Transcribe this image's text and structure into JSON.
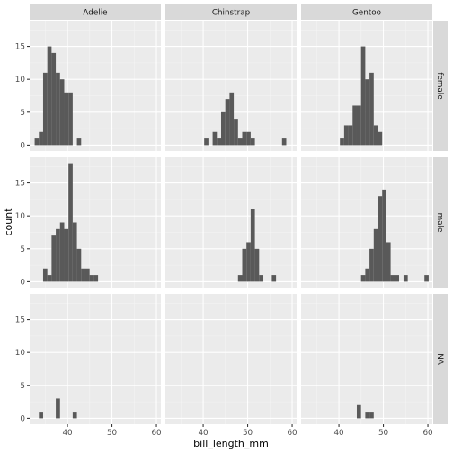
{
  "chart_data": {
    "type": "histogram-facet-grid",
    "xlabel": "bill_length_mm",
    "ylabel": "count",
    "xlim": [
      31.5,
      61
    ],
    "ylim": [
      -0.9,
      18.9
    ],
    "x_breaks": [
      40,
      50,
      60
    ],
    "x_minor_breaks": [
      35,
      45,
      55
    ],
    "y_breaks": [
      0,
      5,
      10,
      15
    ],
    "y_minor_breaks": [
      2.5,
      7.5,
      12.5,
      17.5
    ],
    "x_tick_labels": [
      "40",
      "50",
      "60"
    ],
    "y_tick_labels": [
      "0",
      "5",
      "10",
      "15"
    ],
    "bar_color": "#595959",
    "panel_bg": "#ebebeb",
    "strip_bg": "#d9d9d9",
    "col_facets": [
      "Adelie",
      "Chinstrap",
      "Gentoo"
    ],
    "row_facets": [
      "female",
      "male",
      "NA"
    ],
    "bin_width": 0.95,
    "panels": [
      {
        "row": 0,
        "col": 0,
        "bars": [
          {
            "x": 33.1,
            "y": 1
          },
          {
            "x": 34.05,
            "y": 2
          },
          {
            "x": 35.0,
            "y": 11
          },
          {
            "x": 35.95,
            "y": 15
          },
          {
            "x": 36.9,
            "y": 14
          },
          {
            "x": 37.85,
            "y": 11
          },
          {
            "x": 38.8,
            "y": 10
          },
          {
            "x": 39.75,
            "y": 8
          },
          {
            "x": 40.7,
            "y": 8
          },
          {
            "x": 42.6,
            "y": 1
          }
        ]
      },
      {
        "row": 0,
        "col": 1,
        "bars": [
          {
            "x": 40.7,
            "y": 1
          },
          {
            "x": 42.6,
            "y": 2
          },
          {
            "x": 43.55,
            "y": 1
          },
          {
            "x": 44.5,
            "y": 5
          },
          {
            "x": 45.45,
            "y": 7
          },
          {
            "x": 46.4,
            "y": 8
          },
          {
            "x": 47.35,
            "y": 4
          },
          {
            "x": 48.3,
            "y": 1
          },
          {
            "x": 49.25,
            "y": 2
          },
          {
            "x": 50.2,
            "y": 2
          },
          {
            "x": 51.15,
            "y": 1
          },
          {
            "x": 58.2,
            "y": 1
          }
        ]
      },
      {
        "row": 0,
        "col": 2,
        "bars": [
          {
            "x": 40.7,
            "y": 1
          },
          {
            "x": 41.65,
            "y": 3
          },
          {
            "x": 42.6,
            "y": 3
          },
          {
            "x": 43.55,
            "y": 6
          },
          {
            "x": 44.5,
            "y": 6
          },
          {
            "x": 45.45,
            "y": 15
          },
          {
            "x": 46.4,
            "y": 10
          },
          {
            "x": 47.35,
            "y": 11
          },
          {
            "x": 48.3,
            "y": 3
          },
          {
            "x": 49.25,
            "y": 2
          }
        ]
      },
      {
        "row": 1,
        "col": 0,
        "bars": [
          {
            "x": 35.0,
            "y": 2
          },
          {
            "x": 35.95,
            "y": 1
          },
          {
            "x": 36.9,
            "y": 7
          },
          {
            "x": 37.85,
            "y": 8
          },
          {
            "x": 38.8,
            "y": 9
          },
          {
            "x": 39.75,
            "y": 8
          },
          {
            "x": 40.7,
            "y": 18
          },
          {
            "x": 41.65,
            "y": 9
          },
          {
            "x": 42.6,
            "y": 5
          },
          {
            "x": 43.55,
            "y": 2
          },
          {
            "x": 44.5,
            "y": 2
          },
          {
            "x": 45.45,
            "y": 1
          },
          {
            "x": 46.4,
            "y": 1
          }
        ]
      },
      {
        "row": 1,
        "col": 1,
        "bars": [
          {
            "x": 48.3,
            "y": 1
          },
          {
            "x": 49.25,
            "y": 5
          },
          {
            "x": 50.2,
            "y": 6
          },
          {
            "x": 51.15,
            "y": 11
          },
          {
            "x": 52.1,
            "y": 5
          },
          {
            "x": 53.05,
            "y": 1
          },
          {
            "x": 55.9,
            "y": 1
          }
        ]
      },
      {
        "row": 1,
        "col": 2,
        "bars": [
          {
            "x": 45.45,
            "y": 1
          },
          {
            "x": 46.4,
            "y": 2
          },
          {
            "x": 47.35,
            "y": 5
          },
          {
            "x": 48.3,
            "y": 8
          },
          {
            "x": 49.25,
            "y": 13
          },
          {
            "x": 50.2,
            "y": 14
          },
          {
            "x": 51.15,
            "y": 6
          },
          {
            "x": 52.1,
            "y": 1
          },
          {
            "x": 53.05,
            "y": 1
          },
          {
            "x": 55.0,
            "y": 1
          },
          {
            "x": 59.7,
            "y": 1
          }
        ]
      },
      {
        "row": 2,
        "col": 0,
        "bars": [
          {
            "x": 34.05,
            "y": 1
          },
          {
            "x": 37.85,
            "y": 3
          },
          {
            "x": 41.65,
            "y": 1
          }
        ]
      },
      {
        "row": 2,
        "col": 1,
        "bars": []
      },
      {
        "row": 2,
        "col": 2,
        "bars": [
          {
            "x": 44.5,
            "y": 2
          },
          {
            "x": 46.4,
            "y": 1
          },
          {
            "x": 47.35,
            "y": 1
          }
        ]
      }
    ]
  }
}
